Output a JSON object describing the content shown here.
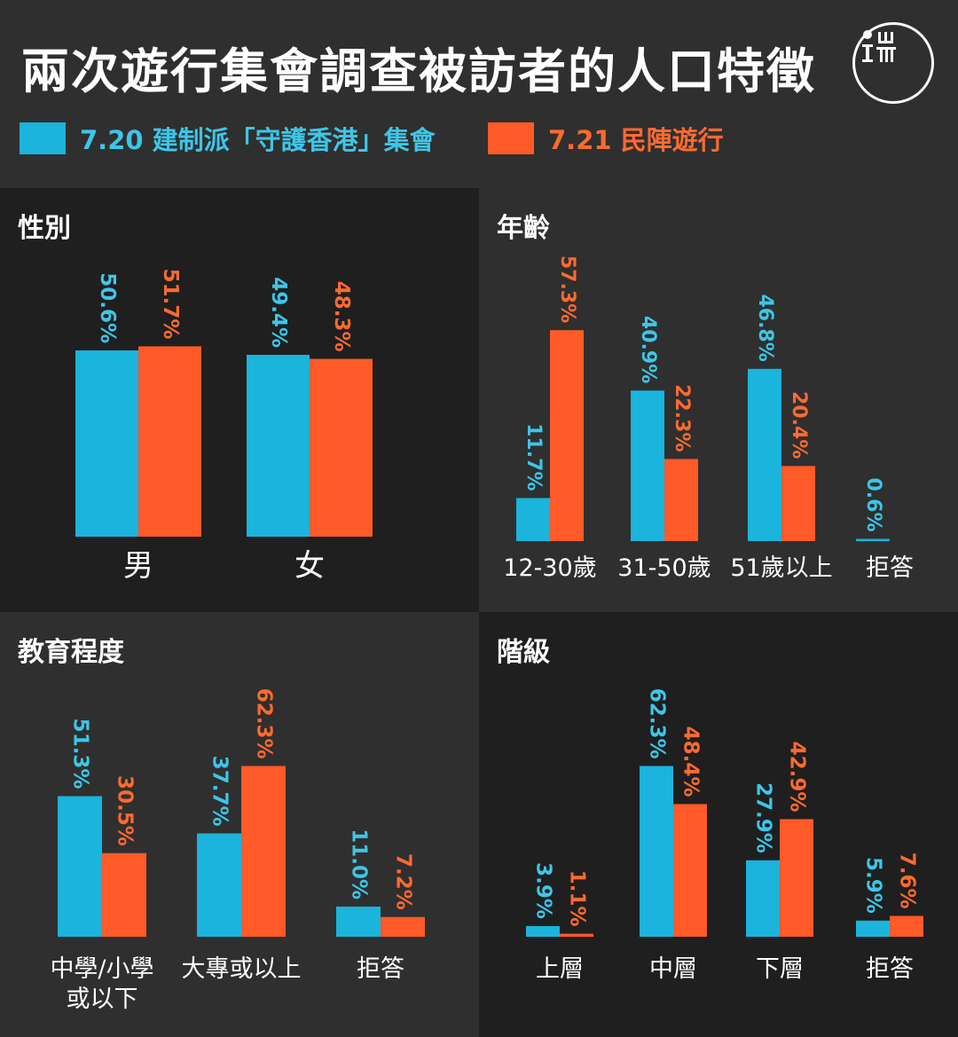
{
  "title": "兩次遊行集會調查被訪者的人口特徵",
  "logo": {
    "icon": "initium-logo-icon"
  },
  "colors": {
    "series_a": "#1ab4dc",
    "series_b": "#ff5a28",
    "label_a": "#3dc6e8",
    "label_b": "#ff6a30"
  },
  "legend": [
    {
      "label": "7.20 建制派「守護香港」集會",
      "color": "#1ab4dc"
    },
    {
      "label": "7.21 民陣遊行",
      "color": "#ff5a28"
    }
  ],
  "chart_data": [
    {
      "type": "bar",
      "title": "性別",
      "categories": [
        "男",
        "女"
      ],
      "series": [
        {
          "name": "7.20 建制派「守護香港」集會",
          "values": [
            50.6,
            49.4
          ]
        },
        {
          "name": "7.21 民陣遊行",
          "values": [
            51.7,
            48.3
          ]
        }
      ],
      "value_suffix": "%"
    },
    {
      "type": "bar",
      "title": "年齡",
      "categories": [
        "12-30歲",
        "31-50歲",
        "51歲以上",
        "拒答"
      ],
      "series": [
        {
          "name": "7.20 建制派「守護香港」集會",
          "values": [
            11.7,
            40.9,
            46.8,
            0.6
          ]
        },
        {
          "name": "7.21 民陣遊行",
          "values": [
            57.3,
            22.3,
            20.4,
            null
          ]
        }
      ],
      "value_suffix": "%"
    },
    {
      "type": "bar",
      "title": "教育程度",
      "categories": [
        "中學/小學\n或以下",
        "大專或以上",
        "拒答"
      ],
      "series": [
        {
          "name": "7.20 建制派「守護香港」集會",
          "values": [
            51.3,
            37.7,
            11.0
          ]
        },
        {
          "name": "7.21 民陣遊行",
          "values": [
            30.5,
            62.3,
            7.2
          ]
        }
      ],
      "value_suffix": "%"
    },
    {
      "type": "bar",
      "title": "階級",
      "categories": [
        "上層",
        "中層",
        "下層",
        "拒答"
      ],
      "series": [
        {
          "name": "7.20 建制派「守護香港」集會",
          "values": [
            3.9,
            62.3,
            27.9,
            5.9
          ]
        },
        {
          "name": "7.21 民陣遊行",
          "values": [
            1.1,
            48.4,
            42.9,
            7.6
          ]
        }
      ],
      "value_suffix": "%"
    }
  ]
}
